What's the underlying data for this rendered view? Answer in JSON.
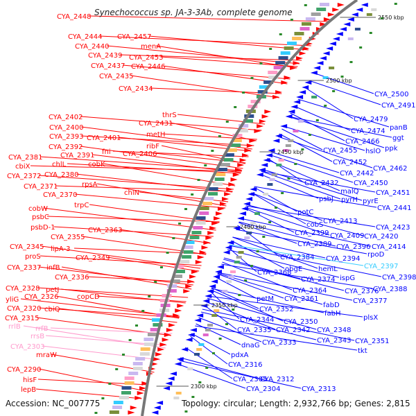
{
  "title": "Synechococcus sp. JA-3-3Ab, complete genome",
  "footer": {
    "accession": "Accession: NC_007775",
    "stats": "Topology: circular; Length: 2,932,766 bp; Genes: 2,815"
  },
  "kbp_labels": [
    "2550 kbp",
    "2500 kbp",
    "2450 kbp",
    "2400 kbp",
    "2350 kbp",
    "2300 kbp"
  ],
  "colors": {
    "forward_strand": "#ff0000",
    "reverse_strand": "#0000ff",
    "rna_genes": "#ff99cc",
    "highlight": "#33ccff",
    "backbone": "#777777"
  },
  "left_labels": [
    {
      "text": "CYA_2448",
      "kind": "forward"
    },
    {
      "text": "CYA_2444",
      "kind": "forward"
    },
    {
      "text": "CYA_2457",
      "kind": "forward"
    },
    {
      "text": "CYA_2440",
      "kind": "forward"
    },
    {
      "text": "menA",
      "kind": "forward"
    },
    {
      "text": "CYA_2439",
      "kind": "forward"
    },
    {
      "text": "CYA_2453",
      "kind": "forward"
    },
    {
      "text": "CYA_2437",
      "kind": "forward"
    },
    {
      "text": "CYA_2446",
      "kind": "forward"
    },
    {
      "text": "CYA_2435",
      "kind": "forward"
    },
    {
      "text": "CYA_2434",
      "kind": "forward"
    },
    {
      "text": "thrS",
      "kind": "forward"
    },
    {
      "text": "CYA_2402",
      "kind": "forward"
    },
    {
      "text": "CYA_2431",
      "kind": "forward"
    },
    {
      "text": "CYA_2400",
      "kind": "forward"
    },
    {
      "text": "metH",
      "kind": "forward"
    },
    {
      "text": "CYA_2393",
      "kind": "forward"
    },
    {
      "text": "CYA_2401",
      "kind": "forward"
    },
    {
      "text": "ribF",
      "kind": "forward"
    },
    {
      "text": "CYA_2392",
      "kind": "forward"
    },
    {
      "text": "fni",
      "kind": "forward"
    },
    {
      "text": "CYA_2406",
      "kind": "forward"
    },
    {
      "text": "CYA_2381",
      "kind": "forward"
    },
    {
      "text": "CYA_2391",
      "kind": "forward"
    },
    {
      "text": "cobK",
      "kind": "forward"
    },
    {
      "text": "cbiX",
      "kind": "forward"
    },
    {
      "text": "chlL",
      "kind": "forward"
    },
    {
      "text": "CYA_2372",
      "kind": "forward"
    },
    {
      "text": "CYA_2380",
      "kind": "forward"
    },
    {
      "text": "rpsA",
      "kind": "forward"
    },
    {
      "text": "CYA_2371",
      "kind": "forward"
    },
    {
      "text": "chlN",
      "kind": "forward"
    },
    {
      "text": "CYA_2370",
      "kind": "forward"
    },
    {
      "text": "trpC",
      "kind": "forward"
    },
    {
      "text": "cobW",
      "kind": "forward"
    },
    {
      "text": "psbC",
      "kind": "forward"
    },
    {
      "text": "psbD-1",
      "kind": "forward"
    },
    {
      "text": "CYA_2363",
      "kind": "forward"
    },
    {
      "text": "CYA_2355",
      "kind": "forward"
    },
    {
      "text": "CYA_2345",
      "kind": "forward"
    },
    {
      "text": "lipA-3",
      "kind": "forward"
    },
    {
      "text": "proS",
      "kind": "forward"
    },
    {
      "text": "CYA_2349",
      "kind": "forward"
    },
    {
      "text": "CYA_2337",
      "kind": "forward"
    },
    {
      "text": "infB",
      "kind": "forward"
    },
    {
      "text": "CYA_2336",
      "kind": "forward"
    },
    {
      "text": "CYA_2328",
      "kind": "forward"
    },
    {
      "text": "petJ",
      "kind": "forward"
    },
    {
      "text": "yliG",
      "kind": "forward"
    },
    {
      "text": "CYA_2326",
      "kind": "forward"
    },
    {
      "text": "copCD",
      "kind": "forward"
    },
    {
      "text": "CYA_2320",
      "kind": "forward"
    },
    {
      "text": "cbiQ",
      "kind": "forward"
    },
    {
      "text": "CYA_2315",
      "kind": "forward"
    },
    {
      "text": "rrlB",
      "kind": "rna"
    },
    {
      "text": "rrfB",
      "kind": "rna"
    },
    {
      "text": "rrsB",
      "kind": "rna"
    },
    {
      "text": "CYA_2303",
      "kind": "rna"
    },
    {
      "text": "mraW",
      "kind": "forward"
    },
    {
      "text": "CYA_2290",
      "kind": "forward"
    },
    {
      "text": "hisF",
      "kind": "forward"
    },
    {
      "text": "lepB",
      "kind": "forward"
    }
  ],
  "right_labels": [
    {
      "text": "CYA_2500",
      "kind": "reverse"
    },
    {
      "text": "CYA_2491",
      "kind": "reverse"
    },
    {
      "text": "panB",
      "kind": "reverse"
    },
    {
      "text": "CYA_2479",
      "kind": "reverse"
    },
    {
      "text": "ggt",
      "kind": "reverse"
    },
    {
      "text": "CYA_2474",
      "kind": "reverse"
    },
    {
      "text": "CYA_2466",
      "kind": "reverse"
    },
    {
      "text": "ppk",
      "kind": "reverse"
    },
    {
      "text": "CYA_2455",
      "kind": "reverse"
    },
    {
      "text": "hslO",
      "kind": "reverse"
    },
    {
      "text": "CYA_2452",
      "kind": "reverse"
    },
    {
      "text": "CYA_2462",
      "kind": "reverse"
    },
    {
      "text": "CYA_2442",
      "kind": "reverse"
    },
    {
      "text": "CYA_2432",
      "kind": "reverse"
    },
    {
      "text": "CYA_2450",
      "kind": "reverse"
    },
    {
      "text": "malQ",
      "kind": "reverse"
    },
    {
      "text": "CYA_2451",
      "kind": "reverse"
    },
    {
      "text": "psbJ",
      "kind": "reverse"
    },
    {
      "text": "pyrH",
      "kind": "reverse"
    },
    {
      "text": "pyrE",
      "kind": "reverse"
    },
    {
      "text": "CYA_2441",
      "kind": "reverse"
    },
    {
      "text": "potC",
      "kind": "reverse"
    },
    {
      "text": "CYA_2413",
      "kind": "reverse"
    },
    {
      "text": "cobS",
      "kind": "reverse"
    },
    {
      "text": "CYA_2423",
      "kind": "reverse"
    },
    {
      "text": "CYA_2399",
      "kind": "reverse"
    },
    {
      "text": "CYA_2409",
      "kind": "reverse"
    },
    {
      "text": "CYA_2420",
      "kind": "reverse"
    },
    {
      "text": "CYA_2389",
      "kind": "reverse"
    },
    {
      "text": "CYA_2396",
      "kind": "reverse"
    },
    {
      "text": "CYA_2414",
      "kind": "reverse"
    },
    {
      "text": "CYA_2384",
      "kind": "reverse"
    },
    {
      "text": "CYA_2394",
      "kind": "reverse"
    },
    {
      "text": "rpoD",
      "kind": "reverse"
    },
    {
      "text": "obgE",
      "kind": "reverse"
    },
    {
      "text": "hemL",
      "kind": "reverse"
    },
    {
      "text": "CYA_2397",
      "kind": "highlight"
    },
    {
      "text": "CYA_2368",
      "kind": "reverse"
    },
    {
      "text": "ispG",
      "kind": "reverse"
    },
    {
      "text": "CYA_2398",
      "kind": "reverse"
    },
    {
      "text": "CYA_2374",
      "kind": "reverse"
    },
    {
      "text": "CYA_2388",
      "kind": "reverse"
    },
    {
      "text": "CYA_2364",
      "kind": "reverse"
    },
    {
      "text": "CYA_2376",
      "kind": "reverse"
    },
    {
      "text": "petM",
      "kind": "reverse"
    },
    {
      "text": "CYA_2361",
      "kind": "reverse"
    },
    {
      "text": "CYA_2377",
      "kind": "reverse"
    },
    {
      "text": "fabD",
      "kind": "reverse"
    },
    {
      "text": "CYA_2352",
      "kind": "reverse"
    },
    {
      "text": "fabH",
      "kind": "reverse"
    },
    {
      "text": "CYA_2344",
      "kind": "reverse"
    },
    {
      "text": "CYA_2350",
      "kind": "reverse"
    },
    {
      "text": "plsX",
      "kind": "reverse"
    },
    {
      "text": "CYA_2335",
      "kind": "reverse"
    },
    {
      "text": "CYA_2342",
      "kind": "reverse"
    },
    {
      "text": "CYA_2348",
      "kind": "reverse"
    },
    {
      "text": "dnaG",
      "kind": "reverse"
    },
    {
      "text": "CYA_2333",
      "kind": "reverse"
    },
    {
      "text": "CYA_2343",
      "kind": "reverse"
    },
    {
      "text": "CYA_2351",
      "kind": "reverse"
    },
    {
      "text": "pdxA",
      "kind": "reverse"
    },
    {
      "text": "tkt",
      "kind": "reverse"
    },
    {
      "text": "CYA_2316",
      "kind": "reverse"
    },
    {
      "text": "CYA_2305",
      "kind": "reverse"
    },
    {
      "text": "CYA_2312",
      "kind": "reverse"
    },
    {
      "text": "CYA_2304",
      "kind": "reverse"
    },
    {
      "text": "CYA_2313",
      "kind": "reverse"
    }
  ]
}
